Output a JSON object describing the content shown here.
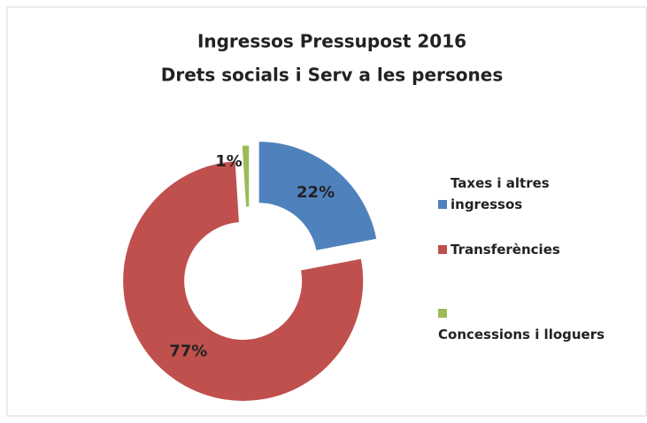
{
  "chart_data": {
    "type": "donut",
    "title": [
      "Ingressos Pressupost 2016",
      "Drets socials i Serv a les persones"
    ],
    "categories": [
      "Taxes i altres ingressos",
      "Transferències",
      "Concessions i lloguers"
    ],
    "values": [
      22,
      77,
      1
    ],
    "value_labels": [
      "22%",
      "77%",
      "1%"
    ],
    "colors": [
      "#4f81bd",
      "#c0504d",
      "#9bbb59"
    ],
    "legend": "right"
  }
}
